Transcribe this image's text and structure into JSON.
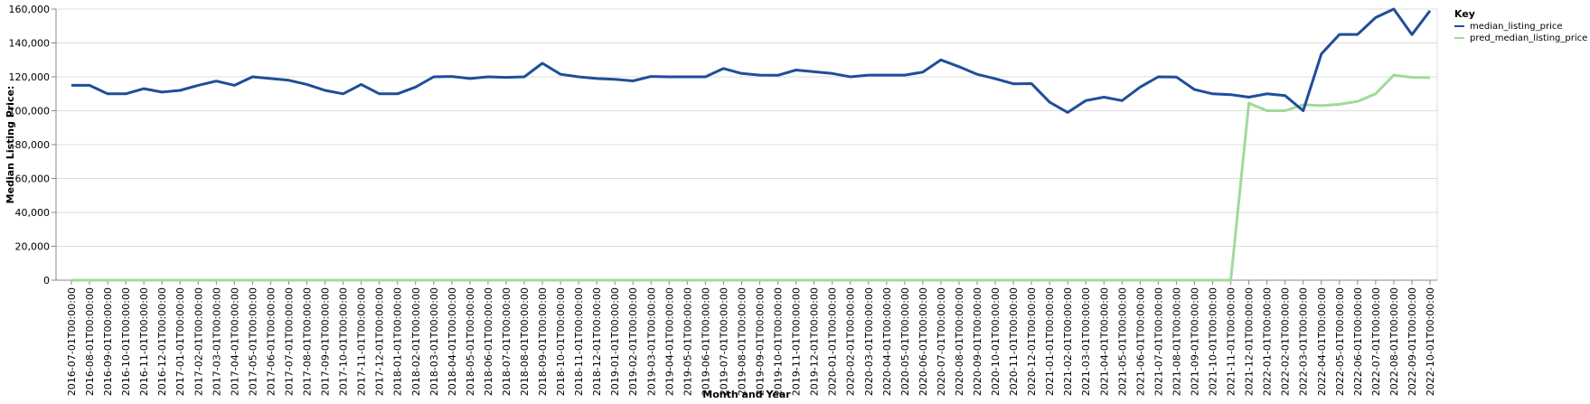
{
  "chart_data": {
    "type": "line",
    "xlabel": "Month and Year",
    "ylabel": "Median Listing Price:",
    "ylim": [
      0,
      160000
    ],
    "yticks": [
      0,
      20000,
      40000,
      60000,
      80000,
      100000,
      120000,
      140000,
      160000
    ],
    "ytick_labels": [
      "0",
      "20,000",
      "40,000",
      "60,000",
      "80,000",
      "100,000",
      "120,000",
      "140,000",
      "160,000"
    ],
    "grid": true,
    "legend": {
      "title": "Key",
      "position": "top-right"
    },
    "x": [
      "2016-07-01T00:00:00",
      "2016-08-01T00:00:00",
      "2016-09-01T00:00:00",
      "2016-10-01T00:00:00",
      "2016-11-01T00:00:00",
      "2016-12-01T00:00:00",
      "2017-01-01T00:00:00",
      "2017-02-01T00:00:00",
      "2017-03-01T00:00:00",
      "2017-04-01T00:00:00",
      "2017-05-01T00:00:00",
      "2017-06-01T00:00:00",
      "2017-07-01T00:00:00",
      "2017-08-01T00:00:00",
      "2017-09-01T00:00:00",
      "2017-10-01T00:00:00",
      "2017-11-01T00:00:00",
      "2017-12-01T00:00:00",
      "2018-01-01T00:00:00",
      "2018-02-01T00:00:00",
      "2018-03-01T00:00:00",
      "2018-04-01T00:00:00",
      "2018-05-01T00:00:00",
      "2018-06-01T00:00:00",
      "2018-07-01T00:00:00",
      "2018-08-01T00:00:00",
      "2018-09-01T00:00:00",
      "2018-10-01T00:00:00",
      "2018-11-01T00:00:00",
      "2018-12-01T00:00:00",
      "2019-01-01T00:00:00",
      "2019-02-01T00:00:00",
      "2019-03-01T00:00:00",
      "2019-04-01T00:00:00",
      "2019-05-01T00:00:00",
      "2019-06-01T00:00:00",
      "2019-07-01T00:00:00",
      "2019-08-01T00:00:00",
      "2019-09-01T00:00:00",
      "2019-10-01T00:00:00",
      "2019-11-01T00:00:00",
      "2019-12-01T00:00:00",
      "2020-01-01T00:00:00",
      "2020-02-01T00:00:00",
      "2020-03-01T00:00:00",
      "2020-04-01T00:00:00",
      "2020-05-01T00:00:00",
      "2020-06-01T00:00:00",
      "2020-07-01T00:00:00",
      "2020-08-01T00:00:00",
      "2020-09-01T00:00:00",
      "2020-10-01T00:00:00",
      "2020-11-01T00:00:00",
      "2020-12-01T00:00:00",
      "2021-01-01T00:00:00",
      "2021-02-01T00:00:00",
      "2021-03-01T00:00:00",
      "2021-04-01T00:00:00",
      "2021-05-01T00:00:00",
      "2021-06-01T00:00:00",
      "2021-07-01T00:00:00",
      "2021-08-01T00:00:00",
      "2021-09-01T00:00:00",
      "2021-10-01T00:00:00",
      "2021-11-01T00:00:00",
      "2021-12-01T00:00:00",
      "2022-01-01T00:00:00",
      "2022-02-01T00:00:00",
      "2022-03-01T00:00:00",
      "2022-04-01T00:00:00",
      "2022-05-01T00:00:00",
      "2022-06-01T00:00:00",
      "2022-07-01T00:00:00",
      "2022-08-01T00:00:00",
      "2022-09-01T00:00:00",
      "2022-10-01T00:00:00"
    ],
    "series": [
      {
        "name": "median_listing_price",
        "color": "#1f4e99",
        "values": [
          115000,
          115000,
          110000,
          110000,
          113000,
          111000,
          112000,
          115000,
          117500,
          115000,
          120000,
          119000,
          118000,
          115500,
          112000,
          110000,
          115500,
          110000,
          110000,
          114000,
          120000,
          120200,
          119000,
          120000,
          119700,
          120000,
          128000,
          121500,
          120000,
          119000,
          118500,
          117600,
          120200,
          120000,
          120000,
          120000,
          124900,
          122000,
          121000,
          120900,
          124000,
          123000,
          122000,
          120000,
          121000,
          121000,
          121000,
          122800,
          130000,
          126000,
          121500,
          118900,
          115900,
          116000,
          105000,
          99000,
          106000,
          108000,
          106000,
          114000,
          120000,
          119900,
          112500,
          110000,
          109500,
          108000,
          110000,
          108900,
          100000,
          133500,
          145000,
          145000,
          155000,
          160000,
          144900,
          159000
        ]
      },
      {
        "name": "pred_median_listing_price",
        "color": "#a1d99b",
        "values": [
          0,
          0,
          0,
          0,
          0,
          0,
          0,
          0,
          0,
          0,
          0,
          0,
          0,
          0,
          0,
          0,
          0,
          0,
          0,
          0,
          0,
          0,
          0,
          0,
          0,
          0,
          0,
          0,
          0,
          0,
          0,
          0,
          0,
          0,
          0,
          0,
          0,
          0,
          0,
          0,
          0,
          0,
          0,
          0,
          0,
          0,
          0,
          0,
          0,
          0,
          0,
          0,
          0,
          0,
          0,
          0,
          0,
          0,
          0,
          0,
          0,
          0,
          0,
          0,
          0,
          104500,
          100000,
          100000,
          103500,
          103000,
          103800,
          105500,
          110000,
          121000,
          119700,
          119500
        ]
      }
    ]
  }
}
